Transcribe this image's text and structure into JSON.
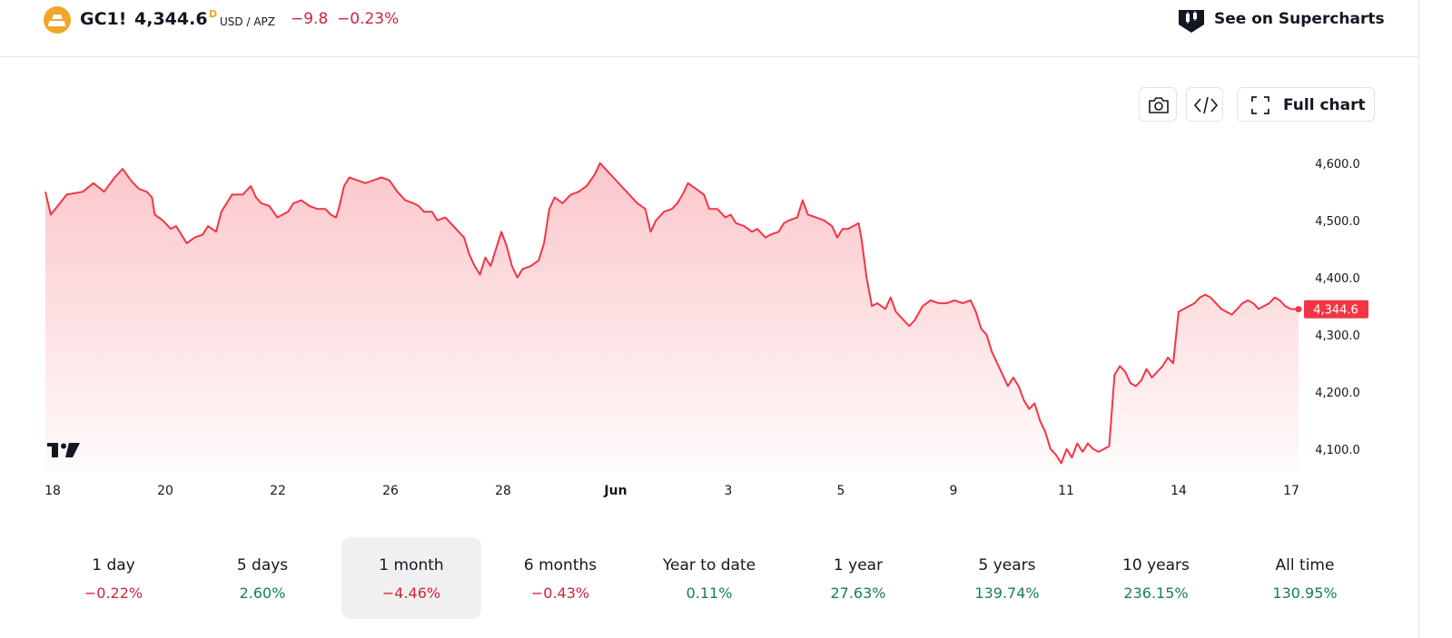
{
  "header": {
    "symbol": "GC1!",
    "price": "4,344.6",
    "superscript": "D",
    "currency": "USD / APZ",
    "change": "−9.8",
    "change_percent": "−0.23%",
    "supercharts_label": "See on Supercharts"
  },
  "toolbar": {
    "full_chart_label": "Full chart"
  },
  "colors": {
    "negative": "#d0243b",
    "positive": "#177b66",
    "line": "#f23645",
    "accent_logo": "#f0a626"
  },
  "chart_data": {
    "type": "area",
    "x_tick_labels": [
      "18",
      "20",
      "22",
      "26",
      "28",
      "Jun",
      "3",
      "5",
      "9",
      "11",
      "14",
      "17"
    ],
    "y_tick_labels": [
      "4,600.0",
      "4,500.0",
      "4,400.0",
      "4,300.0",
      "4,200.0",
      "4,100.0"
    ],
    "y_ticks": [
      4600,
      4500,
      4400,
      4300,
      4200,
      4100
    ],
    "ylim": [
      4060,
      4625
    ],
    "last_price_label": "4,344.6",
    "last_price": 4344.6,
    "series": [
      {
        "points": [
          [
            0.0,
            4550
          ],
          [
            0.1,
            4510
          ],
          [
            0.4,
            4545
          ],
          [
            0.7,
            4550
          ],
          [
            0.9,
            4565
          ],
          [
            1.1,
            4550
          ],
          [
            1.3,
            4575
          ],
          [
            1.45,
            4590
          ],
          [
            1.6,
            4570
          ],
          [
            1.75,
            4555
          ],
          [
            1.9,
            4550
          ],
          [
            2.0,
            4540
          ],
          [
            2.05,
            4510
          ],
          [
            2.2,
            4500
          ],
          [
            2.35,
            4485
          ],
          [
            2.45,
            4490
          ],
          [
            2.55,
            4475
          ],
          [
            2.65,
            4460
          ],
          [
            2.8,
            4470
          ],
          [
            2.95,
            4475
          ],
          [
            3.05,
            4490
          ],
          [
            3.2,
            4480
          ],
          [
            3.3,
            4515
          ],
          [
            3.5,
            4545
          ],
          [
            3.7,
            4545
          ],
          [
            3.85,
            4560
          ],
          [
            3.95,
            4540
          ],
          [
            4.05,
            4530
          ],
          [
            4.2,
            4525
          ],
          [
            4.35,
            4505
          ],
          [
            4.45,
            4510
          ],
          [
            4.55,
            4515
          ],
          [
            4.65,
            4530
          ],
          [
            4.8,
            4535
          ],
          [
            4.95,
            4525
          ],
          [
            5.1,
            4520
          ],
          [
            5.25,
            4520
          ],
          [
            5.35,
            4510
          ],
          [
            5.45,
            4505
          ],
          [
            5.5,
            4520
          ],
          [
            5.6,
            4560
          ],
          [
            5.7,
            4575
          ],
          [
            5.85,
            4570
          ],
          [
            6.0,
            4565
          ],
          [
            6.15,
            4570
          ],
          [
            6.3,
            4575
          ],
          [
            6.45,
            4570
          ],
          [
            6.6,
            4550
          ],
          [
            6.75,
            4535
          ],
          [
            6.9,
            4530
          ],
          [
            7.0,
            4525
          ],
          [
            7.1,
            4515
          ],
          [
            7.25,
            4515
          ],
          [
            7.35,
            4500
          ],
          [
            7.5,
            4505
          ],
          [
            7.65,
            4490
          ],
          [
            7.75,
            4480
          ],
          [
            7.85,
            4470
          ],
          [
            7.95,
            4440
          ],
          [
            8.05,
            4420
          ],
          [
            8.15,
            4405
          ],
          [
            8.25,
            4435
          ],
          [
            8.35,
            4420
          ],
          [
            8.45,
            4450
          ],
          [
            8.55,
            4480
          ],
          [
            8.65,
            4455
          ],
          [
            8.75,
            4420
          ],
          [
            8.85,
            4400
          ],
          [
            8.95,
            4415
          ],
          [
            9.1,
            4420
          ],
          [
            9.25,
            4430
          ],
          [
            9.35,
            4460
          ],
          [
            9.45,
            4520
          ],
          [
            9.55,
            4540
          ],
          [
            9.7,
            4530
          ],
          [
            9.85,
            4545
          ],
          [
            10.0,
            4550
          ],
          [
            10.15,
            4560
          ],
          [
            10.3,
            4580
          ],
          [
            10.4,
            4600
          ],
          [
            10.55,
            4585
          ],
          [
            10.65,
            4575
          ],
          [
            10.8,
            4560
          ],
          [
            10.95,
            4545
          ],
          [
            11.1,
            4530
          ],
          [
            11.25,
            4520
          ],
          [
            11.35,
            4480
          ],
          [
            11.45,
            4500
          ],
          [
            11.6,
            4515
          ],
          [
            11.75,
            4520
          ],
          [
            11.85,
            4530
          ],
          [
            11.95,
            4545
          ],
          [
            12.05,
            4565
          ],
          [
            12.2,
            4555
          ],
          [
            12.35,
            4545
          ],
          [
            12.45,
            4520
          ],
          [
            12.6,
            4520
          ],
          [
            12.75,
            4505
          ],
          [
            12.85,
            4510
          ],
          [
            12.95,
            4495
          ],
          [
            13.1,
            4490
          ],
          [
            13.25,
            4480
          ],
          [
            13.35,
            4485
          ],
          [
            13.5,
            4470
          ],
          [
            13.6,
            4475
          ],
          [
            13.75,
            4480
          ],
          [
            13.85,
            4495
          ],
          [
            13.95,
            4500
          ],
          [
            14.1,
            4505
          ],
          [
            14.2,
            4535
          ],
          [
            14.3,
            4510
          ],
          [
            14.45,
            4505
          ],
          [
            14.6,
            4500
          ],
          [
            14.75,
            4490
          ],
          [
            14.85,
            4470
          ],
          [
            14.95,
            4485
          ],
          [
            15.05,
            4485
          ],
          [
            15.15,
            4490
          ],
          [
            15.25,
            4495
          ],
          [
            15.3,
            4470
          ],
          [
            15.4,
            4400
          ],
          [
            15.5,
            4350
          ],
          [
            15.6,
            4355
          ],
          [
            15.75,
            4345
          ],
          [
            15.85,
            4365
          ],
          [
            15.95,
            4340
          ],
          [
            16.05,
            4330
          ],
          [
            16.2,
            4315
          ],
          [
            16.3,
            4325
          ],
          [
            16.45,
            4350
          ],
          [
            16.6,
            4360
          ],
          [
            16.75,
            4355
          ],
          [
            16.9,
            4355
          ],
          [
            17.05,
            4360
          ],
          [
            17.2,
            4355
          ],
          [
            17.35,
            4360
          ],
          [
            17.45,
            4340
          ],
          [
            17.55,
            4310
          ],
          [
            17.65,
            4300
          ],
          [
            17.75,
            4270
          ],
          [
            17.85,
            4250
          ],
          [
            17.95,
            4230
          ],
          [
            18.05,
            4210
          ],
          [
            18.15,
            4225
          ],
          [
            18.25,
            4210
          ],
          [
            18.35,
            4185
          ],
          [
            18.45,
            4170
          ],
          [
            18.55,
            4180
          ],
          [
            18.65,
            4150
          ],
          [
            18.75,
            4130
          ],
          [
            18.85,
            4100
          ],
          [
            18.95,
            4090
          ],
          [
            19.05,
            4075
          ],
          [
            19.15,
            4100
          ],
          [
            19.25,
            4085
          ],
          [
            19.35,
            4110
          ],
          [
            19.45,
            4095
          ],
          [
            19.55,
            4110
          ],
          [
            19.65,
            4100
          ],
          [
            19.75,
            4095
          ],
          [
            19.85,
            4100
          ],
          [
            19.95,
            4105
          ],
          [
            20.05,
            4230
          ],
          [
            20.15,
            4245
          ],
          [
            20.25,
            4235
          ],
          [
            20.35,
            4215
          ],
          [
            20.45,
            4210
          ],
          [
            20.55,
            4220
          ],
          [
            20.65,
            4240
          ],
          [
            20.75,
            4225
          ],
          [
            20.85,
            4235
          ],
          [
            20.95,
            4245
          ],
          [
            21.05,
            4260
          ],
          [
            21.15,
            4250
          ],
          [
            21.25,
            4340
          ],
          [
            21.35,
            4345
          ],
          [
            21.45,
            4350
          ],
          [
            21.55,
            4355
          ],
          [
            21.65,
            4365
          ],
          [
            21.75,
            4370
          ],
          [
            21.85,
            4365
          ],
          [
            21.95,
            4355
          ],
          [
            22.05,
            4345
          ],
          [
            22.15,
            4340
          ],
          [
            22.25,
            4335
          ],
          [
            22.35,
            4345
          ],
          [
            22.45,
            4355
          ],
          [
            22.55,
            4360
          ],
          [
            22.65,
            4355
          ],
          [
            22.75,
            4345
          ],
          [
            22.85,
            4350
          ],
          [
            22.95,
            4355
          ],
          [
            23.05,
            4365
          ],
          [
            23.15,
            4360
          ],
          [
            23.25,
            4350
          ],
          [
            23.35,
            4345
          ],
          [
            23.5,
            4344.6
          ]
        ]
      }
    ]
  },
  "periods": [
    {
      "label": "1 day",
      "value": "−0.22%",
      "sign": "negative"
    },
    {
      "label": "5 days",
      "value": "2.60%",
      "sign": "positive"
    },
    {
      "label": "1 month",
      "value": "−4.46%",
      "sign": "negative",
      "active": true
    },
    {
      "label": "6 months",
      "value": "−0.43%",
      "sign": "negative"
    },
    {
      "label": "Year to date",
      "value": "0.11%",
      "sign": "positive"
    },
    {
      "label": "1 year",
      "value": "27.63%",
      "sign": "positive"
    },
    {
      "label": "5 years",
      "value": "139.74%",
      "sign": "positive"
    },
    {
      "label": "10 years",
      "value": "236.15%",
      "sign": "positive"
    },
    {
      "label": "All time",
      "value": "130.95%",
      "sign": "positive"
    }
  ]
}
